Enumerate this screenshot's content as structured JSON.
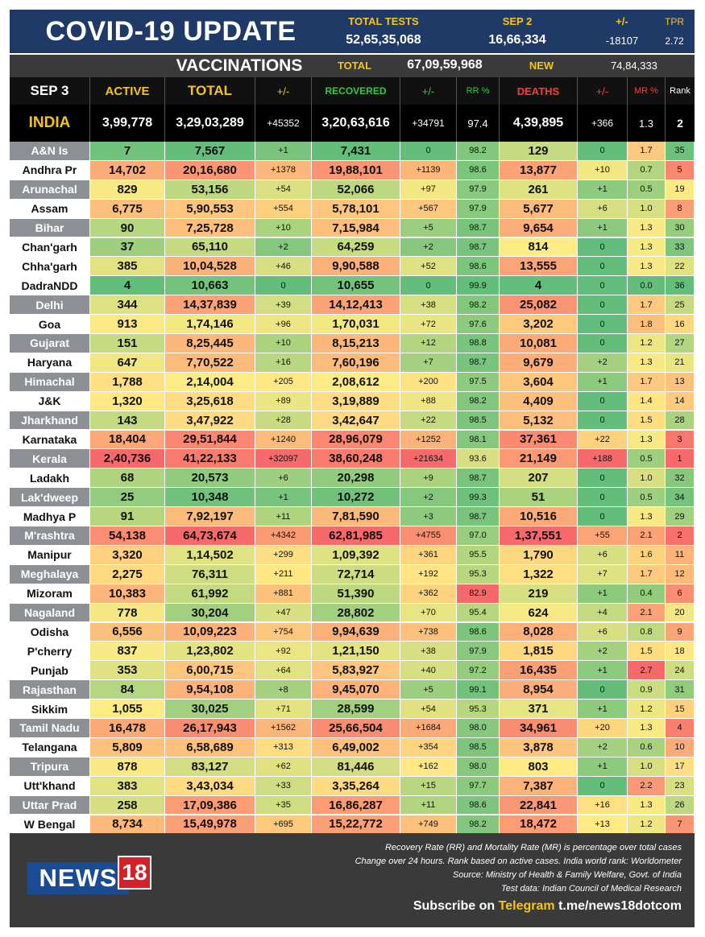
{
  "header": {
    "title": "COVID-19 UPDATE",
    "total_tests_label": "TOTAL TESTS",
    "total_tests_value": "52,65,35,068",
    "sep2_label": "SEP 2",
    "sep2_value": "16,66,334",
    "change_label": "+/-",
    "change_value": "-18107",
    "tpr_label": "TPR",
    "tpr_value": "2.72"
  },
  "vaccinations": {
    "title": "VACCINATIONS",
    "total_label": "TOTAL",
    "total_value": "67,09,59,968",
    "new_label": "NEW",
    "new_value": "74,84,333"
  },
  "columns": {
    "date": "SEP 3",
    "active": "ACTIVE",
    "total": "TOTAL",
    "total_change": "+/-",
    "recovered": "RECOVERED",
    "recovered_change": "+/-",
    "rr": "RR %",
    "deaths": "DEATHS",
    "deaths_change": "+/-",
    "mr": "MR %",
    "rank": "Rank"
  },
  "india": {
    "name": "INDIA",
    "active": "3,99,778",
    "total": "3,29,03,289",
    "total_change": "+45352",
    "recovered": "3,20,63,616",
    "recovered_change": "+34791",
    "rr": "97.4",
    "deaths": "4,39,895",
    "deaths_change": "+366",
    "mr": "1.3",
    "rank": "2"
  },
  "states": [
    {
      "name": "A&N Is",
      "active": "7",
      "total": "7,567",
      "tc": "+1",
      "recovered": "7,431",
      "rc": "0",
      "rr": "98.2",
      "deaths": "129",
      "dc": "0",
      "mr": "1.7",
      "rank": "35"
    },
    {
      "name": "Andhra Pr",
      "active": "14,702",
      "total": "20,16,680",
      "tc": "+1378",
      "recovered": "19,88,101",
      "rc": "+1139",
      "rr": "98.6",
      "deaths": "13,877",
      "dc": "+10",
      "mr": "0.7",
      "rank": "5"
    },
    {
      "name": "Arunachal",
      "active": "829",
      "total": "53,156",
      "tc": "+54",
      "recovered": "52,066",
      "rc": "+97",
      "rr": "97.9",
      "deaths": "261",
      "dc": "+1",
      "mr": "0.5",
      "rank": "19"
    },
    {
      "name": "Assam",
      "active": "6,775",
      "total": "5,90,553",
      "tc": "+554",
      "recovered": "5,78,101",
      "rc": "+567",
      "rr": "97.9",
      "deaths": "5,677",
      "dc": "+6",
      "mr": "1.0",
      "rank": "8"
    },
    {
      "name": "Bihar",
      "active": "90",
      "total": "7,25,728",
      "tc": "+10",
      "recovered": "7,15,984",
      "rc": "+5",
      "rr": "98.7",
      "deaths": "9,654",
      "dc": "+1",
      "mr": "1.3",
      "rank": "30"
    },
    {
      "name": "Chan'garh",
      "active": "37",
      "total": "65,110",
      "tc": "+2",
      "recovered": "64,259",
      "rc": "+2",
      "rr": "98.7",
      "deaths": "814",
      "dc": "0",
      "mr": "1.3",
      "rank": "33"
    },
    {
      "name": "Chha'garh",
      "active": "385",
      "total": "10,04,528",
      "tc": "+46",
      "recovered": "9,90,588",
      "rc": "+52",
      "rr": "98.6",
      "deaths": "13,555",
      "dc": "0",
      "mr": "1.3",
      "rank": "22"
    },
    {
      "name": "DadraNDD",
      "active": "4",
      "total": "10,663",
      "tc": "0",
      "recovered": "10,655",
      "rc": "0",
      "rr": "99.9",
      "deaths": "4",
      "dc": "0",
      "mr": "0.0",
      "rank": "36"
    },
    {
      "name": "Delhi",
      "active": "344",
      "total": "14,37,839",
      "tc": "+39",
      "recovered": "14,12,413",
      "rc": "+38",
      "rr": "98.2",
      "deaths": "25,082",
      "dc": "0",
      "mr": "1.7",
      "rank": "25"
    },
    {
      "name": "Goa",
      "active": "913",
      "total": "1,74,146",
      "tc": "+96",
      "recovered": "1,70,031",
      "rc": "+72",
      "rr": "97.6",
      "deaths": "3,202",
      "dc": "0",
      "mr": "1.8",
      "rank": "16"
    },
    {
      "name": "Gujarat",
      "active": "151",
      "total": "8,25,445",
      "tc": "+10",
      "recovered": "8,15,213",
      "rc": "+12",
      "rr": "98.8",
      "deaths": "10,081",
      "dc": "0",
      "mr": "1.2",
      "rank": "27"
    },
    {
      "name": "Haryana",
      "active": "647",
      "total": "7,70,522",
      "tc": "+16",
      "recovered": "7,60,196",
      "rc": "+7",
      "rr": "98.7",
      "deaths": "9,679",
      "dc": "+2",
      "mr": "1.3",
      "rank": "21"
    },
    {
      "name": "Himachal",
      "active": "1,788",
      "total": "2,14,004",
      "tc": "+205",
      "recovered": "2,08,612",
      "rc": "+200",
      "rr": "97.5",
      "deaths": "3,604",
      "dc": "+1",
      "mr": "1.7",
      "rank": "13"
    },
    {
      "name": "J&K",
      "active": "1,320",
      "total": "3,25,618",
      "tc": "+89",
      "recovered": "3,19,889",
      "rc": "+88",
      "rr": "98.2",
      "deaths": "4,409",
      "dc": "0",
      "mr": "1.4",
      "rank": "14"
    },
    {
      "name": "Jharkhand",
      "active": "143",
      "total": "3,47,922",
      "tc": "+28",
      "recovered": "3,42,647",
      "rc": "+22",
      "rr": "98.5",
      "deaths": "5,132",
      "dc": "0",
      "mr": "1.5",
      "rank": "28"
    },
    {
      "name": "Karnataka",
      "active": "18,404",
      "total": "29,51,844",
      "tc": "+1240",
      "recovered": "28,96,079",
      "rc": "+1252",
      "rr": "98.1",
      "deaths": "37,361",
      "dc": "+22",
      "mr": "1.3",
      "rank": "3"
    },
    {
      "name": "Kerala",
      "active": "2,40,736",
      "total": "41,22,133",
      "tc": "+32097",
      "recovered": "38,60,248",
      "rc": "+21634",
      "rr": "93.6",
      "deaths": "21,149",
      "dc": "+188",
      "mr": "0.5",
      "rank": "1"
    },
    {
      "name": "Ladakh",
      "active": "68",
      "total": "20,573",
      "tc": "+6",
      "recovered": "20,298",
      "rc": "+9",
      "rr": "98.7",
      "deaths": "207",
      "dc": "0",
      "mr": "1.0",
      "rank": "32"
    },
    {
      "name": "Lak'dweep",
      "active": "25",
      "total": "10,348",
      "tc": "+1",
      "recovered": "10,272",
      "rc": "+2",
      "rr": "99.3",
      "deaths": "51",
      "dc": "0",
      "mr": "0.5",
      "rank": "34"
    },
    {
      "name": "Madhya P",
      "active": "91",
      "total": "7,92,197",
      "tc": "+11",
      "recovered": "7,81,590",
      "rc": "+3",
      "rr": "98.7",
      "deaths": "10,516",
      "dc": "0",
      "mr": "1.3",
      "rank": "29"
    },
    {
      "name": "M'rashtra",
      "active": "54,138",
      "total": "64,73,674",
      "tc": "+4342",
      "recovered": "62,81,985",
      "rc": "+4755",
      "rr": "97.0",
      "deaths": "1,37,551",
      "dc": "+55",
      "mr": "2.1",
      "rank": "2"
    },
    {
      "name": "Manipur",
      "active": "3,320",
      "total": "1,14,502",
      "tc": "+299",
      "recovered": "1,09,392",
      "rc": "+361",
      "rr": "95.5",
      "deaths": "1,790",
      "dc": "+6",
      "mr": "1.6",
      "rank": "11"
    },
    {
      "name": "Meghalaya",
      "active": "2,275",
      "total": "76,311",
      "tc": "+211",
      "recovered": "72,714",
      "rc": "+192",
      "rr": "95.3",
      "deaths": "1,322",
      "dc": "+7",
      "mr": "1.7",
      "rank": "12"
    },
    {
      "name": "Mizoram",
      "active": "10,383",
      "total": "61,992",
      "tc": "+881",
      "recovered": "51,390",
      "rc": "+362",
      "rr": "82.9",
      "deaths": "219",
      "dc": "+1",
      "mr": "0.4",
      "rank": "6"
    },
    {
      "name": "Nagaland",
      "active": "778",
      "total": "30,204",
      "tc": "+47",
      "recovered": "28,802",
      "rc": "+70",
      "rr": "95.4",
      "deaths": "624",
      "dc": "+4",
      "mr": "2.1",
      "rank": "20"
    },
    {
      "name": "Odisha",
      "active": "6,556",
      "total": "10,09,223",
      "tc": "+754",
      "recovered": "9,94,639",
      "rc": "+738",
      "rr": "98.6",
      "deaths": "8,028",
      "dc": "+6",
      "mr": "0.8",
      "rank": "9"
    },
    {
      "name": "P'cherry",
      "active": "837",
      "total": "1,23,802",
      "tc": "+92",
      "recovered": "1,21,150",
      "rc": "+38",
      "rr": "97.9",
      "deaths": "1,815",
      "dc": "+2",
      "mr": "1.5",
      "rank": "18"
    },
    {
      "name": "Punjab",
      "active": "353",
      "total": "6,00,715",
      "tc": "+64",
      "recovered": "5,83,927",
      "rc": "+40",
      "rr": "97.2",
      "deaths": "16,435",
      "dc": "+1",
      "mr": "2.7",
      "rank": "24"
    },
    {
      "name": "Rajasthan",
      "active": "84",
      "total": "9,54,108",
      "tc": "+8",
      "recovered": "9,45,070",
      "rc": "+5",
      "rr": "99.1",
      "deaths": "8,954",
      "dc": "0",
      "mr": "0.9",
      "rank": "31"
    },
    {
      "name": "Sikkim",
      "active": "1,055",
      "total": "30,025",
      "tc": "+71",
      "recovered": "28,599",
      "rc": "+54",
      "rr": "95.3",
      "deaths": "371",
      "dc": "+1",
      "mr": "1.2",
      "rank": "15"
    },
    {
      "name": "Tamil Nadu",
      "active": "16,478",
      "total": "26,17,943",
      "tc": "+1562",
      "recovered": "25,66,504",
      "rc": "+1684",
      "rr": "98.0",
      "deaths": "34,961",
      "dc": "+20",
      "mr": "1.3",
      "rank": "4"
    },
    {
      "name": "Telangana",
      "active": "5,809",
      "total": "6,58,689",
      "tc": "+313",
      "recovered": "6,49,002",
      "rc": "+354",
      "rr": "98.5",
      "deaths": "3,878",
      "dc": "+2",
      "mr": "0.6",
      "rank": "10"
    },
    {
      "name": "Tripura",
      "active": "878",
      "total": "83,127",
      "tc": "+62",
      "recovered": "81,446",
      "rc": "+162",
      "rr": "98.0",
      "deaths": "803",
      "dc": "+1",
      "mr": "1.0",
      "rank": "17"
    },
    {
      "name": "Utt'khand",
      "active": "383",
      "total": "3,43,034",
      "tc": "+33",
      "recovered": "3,35,264",
      "rc": "+15",
      "rr": "97.7",
      "deaths": "7,387",
      "dc": "0",
      "mr": "2.2",
      "rank": "23"
    },
    {
      "name": "Uttar Prad",
      "active": "258",
      "total": "17,09,386",
      "tc": "+35",
      "recovered": "16,86,287",
      "rc": "+11",
      "rr": "98.6",
      "deaths": "22,841",
      "dc": "+16",
      "mr": "1.3",
      "rank": "26"
    },
    {
      "name": "W Bengal",
      "active": "8,734",
      "total": "15,49,978",
      "tc": "+695",
      "recovered": "15,22,772",
      "rc": "+749",
      "rr": "98.2",
      "deaths": "18,472",
      "dc": "+13",
      "mr": "1.2",
      "rank": "7"
    }
  ],
  "footer": {
    "note1": "Recovery Rate (RR) and Mortality Rate (MR) is percentage over total cases",
    "note2": "Change over 24 hours. Rank based on active cases. India world rank: Worldometer",
    "note3": "Source: Ministry of Health & Family Welfare, Govt. of India",
    "note4": "Test data: Indian Council of Medical Research",
    "subscribe_prefix": "Subscribe on",
    "subscribe_channel": "Telegram",
    "subscribe_link": "t.me/news18dotcom",
    "logo_text": "NEWS",
    "logo_number": "18"
  },
  "colors": {
    "header_bg": "#1f3a66",
    "accent_yellow": "#f5c518",
    "green_label": "#2ecc40",
    "red_label": "#ff3b30",
    "row_gray": "#8c8f93",
    "footer_bg": "#3a3a3a"
  }
}
